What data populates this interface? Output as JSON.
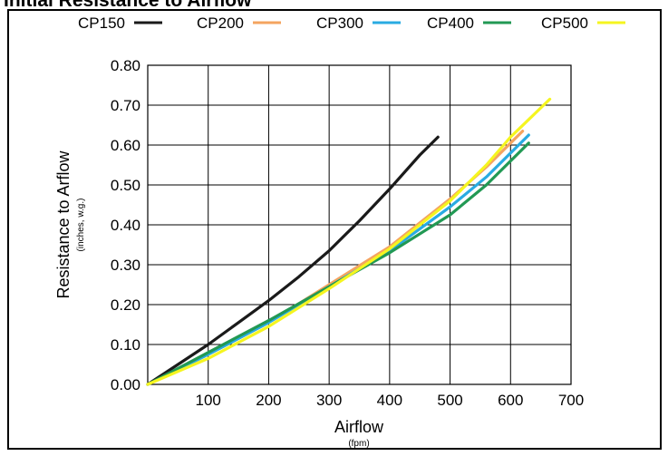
{
  "chart_data": {
    "type": "line",
    "title": "Initial Resistance to Airflow",
    "xlabel": "Airflow",
    "xlabel_unit": "(fpm)",
    "ylabel": "Resistance to Arflow",
    "ylabel_unit": "(inches, w.g.)",
    "xlim": [
      0,
      700
    ],
    "ylim": [
      0,
      0.8
    ],
    "x_ticks": [
      "100",
      "200",
      "300",
      "400",
      "500",
      "600",
      "700"
    ],
    "y_ticks": [
      "0.00",
      "0.10",
      "0.20",
      "0.30",
      "0.40",
      "0.50",
      "0.60",
      "0.70",
      "0.80"
    ],
    "grid": true,
    "legend_position": "top",
    "series": [
      {
        "name": "CP150",
        "color": "#1a1a1a",
        "x": [
          0,
          50,
          100,
          150,
          200,
          250,
          300,
          350,
          400,
          450,
          480
        ],
        "y": [
          0.0,
          0.05,
          0.1,
          0.155,
          0.21,
          0.27,
          0.335,
          0.41,
          0.49,
          0.575,
          0.62
        ]
      },
      {
        "name": "CP200",
        "color": "#f4a460",
        "x": [
          0,
          100,
          200,
          300,
          400,
          500,
          560,
          620
        ],
        "y": [
          0.0,
          0.075,
          0.155,
          0.25,
          0.345,
          0.465,
          0.545,
          0.635
        ]
      },
      {
        "name": "CP300",
        "color": "#29abe2",
        "x": [
          0,
          100,
          200,
          300,
          400,
          500,
          560,
          630
        ],
        "y": [
          0.0,
          0.075,
          0.155,
          0.245,
          0.335,
          0.445,
          0.52,
          0.625
        ]
      },
      {
        "name": "CP400",
        "color": "#229954",
        "x": [
          0,
          100,
          200,
          300,
          400,
          500,
          560,
          630
        ],
        "y": [
          0.0,
          0.08,
          0.16,
          0.245,
          0.33,
          0.425,
          0.5,
          0.605
        ]
      },
      {
        "name": "CP500",
        "color": "#f5f51f",
        "x": [
          0,
          100,
          200,
          300,
          400,
          500,
          560,
          600,
          665
        ],
        "y": [
          0.0,
          0.065,
          0.145,
          0.24,
          0.34,
          0.46,
          0.55,
          0.62,
          0.715
        ]
      }
    ]
  }
}
